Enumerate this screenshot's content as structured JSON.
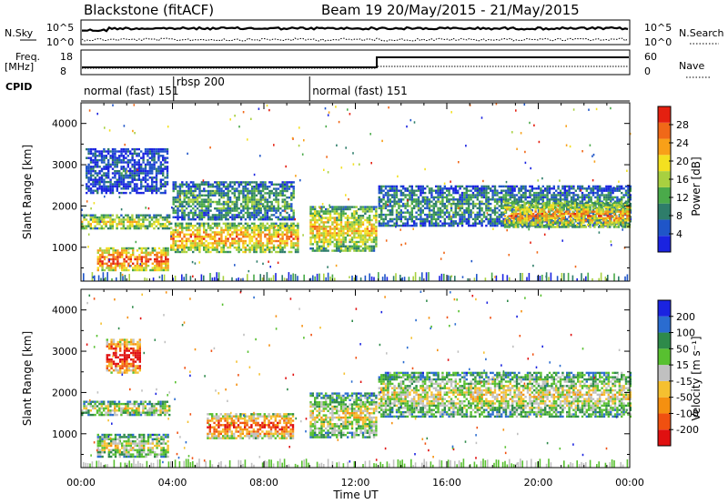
{
  "header": {
    "title": "Blackstone (fitACF)",
    "beam": "Beam 19",
    "daterange": "20/May/2015 - 21/May/2015"
  },
  "noise_panel": {
    "left_label": "N.Sky",
    "right_label": "N.Search",
    "left_ticks": [
      "10^5",
      "10^0"
    ],
    "right_ticks": [
      "10^5",
      "10^0"
    ]
  },
  "freq_panel": {
    "left_label_line1": "Freq.",
    "left_label_line2": "[MHz]",
    "right_label": "Nave",
    "left_ticks": [
      "18",
      "8"
    ],
    "right_ticks": [
      "60",
      "0"
    ]
  },
  "cpid": {
    "label": "CPID",
    "segments": [
      {
        "label": "normal (fast) 151",
        "start_hour": 0
      },
      {
        "label": "rbsp 200",
        "start_hour": 4.05
      },
      {
        "label": "normal (fast) 151",
        "start_hour": 10.0
      }
    ]
  },
  "chart_data": [
    {
      "type": "heatmap",
      "name": "power",
      "xlabel": "",
      "ylabel": "Slant Range [km]",
      "xlim": [
        0,
        24
      ],
      "ylim": [
        180,
        4500
      ],
      "y_ticks": [
        1000,
        2000,
        3000,
        4000
      ],
      "colorbar_label": "Power [dB]",
      "colorbar_ticks": [
        "4",
        "8",
        "12",
        "16",
        "20",
        "24",
        "28"
      ],
      "colors": [
        "#1a23e0",
        "#1f55c8",
        "#2e7d6a",
        "#4aaa4a",
        "#a8d040",
        "#f3e020",
        "#f8a018",
        "#f06818",
        "#e42010"
      ],
      "echo_bands": [
        {
          "t0": 0.0,
          "t1": 3.9,
          "r0": 1450,
          "r1": 1800,
          "level": 0.55
        },
        {
          "t0": 0.2,
          "t1": 3.8,
          "r0": 2300,
          "r1": 3400,
          "level": 0.15
        },
        {
          "t0": 0.7,
          "t1": 3.8,
          "r0": 420,
          "r1": 1000,
          "level": 0.8
        },
        {
          "t0": 3.9,
          "t1": 9.5,
          "r0": 900,
          "r1": 1600,
          "level": 0.7
        },
        {
          "t0": 4.0,
          "t1": 9.3,
          "r0": 1700,
          "r1": 2600,
          "level": 0.35
        },
        {
          "t0": 10.0,
          "t1": 12.9,
          "r0": 900,
          "r1": 2000,
          "level": 0.6
        },
        {
          "t0": 13.0,
          "t1": 24.0,
          "r0": 1500,
          "r1": 2500,
          "level": 0.3
        },
        {
          "t0": 18.5,
          "t1": 24.0,
          "r0": 1500,
          "r1": 2100,
          "level": 0.7
        }
      ]
    },
    {
      "type": "heatmap",
      "name": "velocity",
      "xlabel": "Time UT",
      "ylabel": "Slant Range [km]",
      "xlim": [
        0,
        24
      ],
      "ylim": [
        180,
        4500
      ],
      "x_ticks": [
        "00:00",
        "04:00",
        "08:00",
        "12:00",
        "16:00",
        "20:00",
        "00:00"
      ],
      "y_ticks": [
        1000,
        2000,
        3000,
        4000
      ],
      "colorbar_label": "Velocity [m s⁻¹]",
      "colorbar_ticks": [
        "200",
        "100",
        "50",
        "15",
        "-15",
        "-50",
        "-100",
        "-200"
      ],
      "colors": [
        "#1a23e0",
        "#2a6cd0",
        "#2e8a4a",
        "#58c030",
        "#c0c0c0",
        "#f5c030",
        "#f59010",
        "#f05010",
        "#e01010"
      ],
      "echo_bands": [
        {
          "t0": 0.0,
          "t1": 3.9,
          "r0": 1450,
          "r1": 1800,
          "level": 0.5
        },
        {
          "t0": 1.1,
          "t1": 2.6,
          "r0": 2500,
          "r1": 3300,
          "level": 0.95
        },
        {
          "t0": 0.7,
          "t1": 3.8,
          "r0": 420,
          "r1": 1000,
          "level": 0.5
        },
        {
          "t0": 5.5,
          "t1": 9.3,
          "r0": 900,
          "r1": 1500,
          "level": 0.8
        },
        {
          "t0": 10.0,
          "t1": 12.9,
          "r0": 900,
          "r1": 2000,
          "level": 0.5
        },
        {
          "t0": 13.0,
          "t1": 24.0,
          "r0": 1400,
          "r1": 2500,
          "level": 0.5
        }
      ]
    }
  ],
  "time_axis": {
    "label": "Time UT",
    "ticks": [
      "00:00",
      "04:00",
      "08:00",
      "12:00",
      "16:00",
      "20:00",
      "00:00"
    ]
  }
}
